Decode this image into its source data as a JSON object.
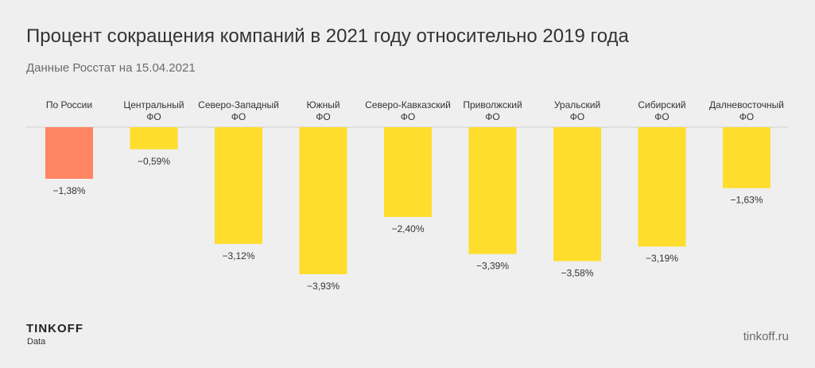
{
  "chart_data": {
    "type": "bar",
    "title": "Процент сокращения компаний в 2021 году относительно 2019 года",
    "subtitle": "Данные Росстат на 15.04.2021",
    "categories": [
      [
        "По России"
      ],
      [
        "Центральный",
        "ФО"
      ],
      [
        "Северо-Западный",
        "ФО"
      ],
      [
        "Южный",
        "ФО"
      ],
      [
        "Северо-Кавказский",
        "ФО"
      ],
      [
        "Приволжский",
        "ФО"
      ],
      [
        "Уральский",
        "ФО"
      ],
      [
        "Сибирский",
        "ФО"
      ],
      [
        "Далневосточный",
        "ФО"
      ]
    ],
    "values": [
      -1.38,
      -0.59,
      -3.12,
      -3.93,
      -2.4,
      -3.39,
      -3.58,
      -3.19,
      -1.63
    ],
    "labels": [
      "−1,38%",
      "−0,59%",
      "−3,12%",
      "−3,93%",
      "−2,40%",
      "−3,39%",
      "−3,58%",
      "−3,19%",
      "−1,63%"
    ],
    "colors": [
      "#ff8562",
      "#ffdd2d",
      "#ffdd2d",
      "#ffdd2d",
      "#ffdd2d",
      "#ffdd2d",
      "#ffdd2d",
      "#ffdd2d",
      "#ffdd2d"
    ],
    "xlabel": "",
    "ylabel": "",
    "ylim": [
      -3.93,
      0
    ]
  },
  "footer": {
    "brand": "TINKOFF",
    "brand_sub": "Data",
    "site": "tinkoff.ru"
  }
}
